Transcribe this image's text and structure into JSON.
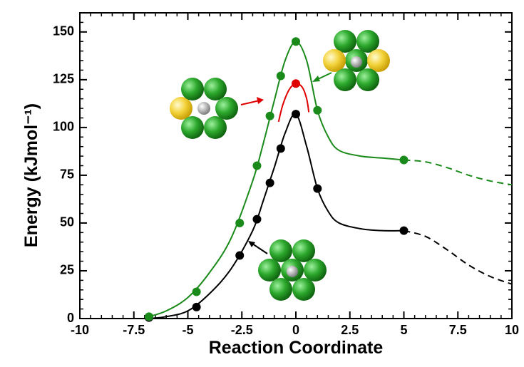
{
  "chart_data": {
    "type": "line",
    "xlabel": "Reaction Coordinate",
    "ylabel": "Energy (kJmol⁻¹)",
    "xlim": [
      -10,
      10
    ],
    "ylim": [
      0,
      160
    ],
    "xticks": [
      -10,
      -7.5,
      -5,
      -2.5,
      0,
      2.5,
      5,
      7.5,
      10
    ],
    "yticks": [
      0,
      25,
      50,
      75,
      100,
      125,
      150
    ],
    "series": [
      {
        "color": "#000000",
        "mode": "line",
        "x": [
          -6.8,
          -6,
          -5,
          -4,
          -3,
          -2,
          -1.5,
          -1,
          -0.5,
          0,
          0.5,
          1,
          1.5,
          2,
          3,
          4,
          5
        ],
        "values": [
          0,
          1,
          4,
          13,
          26,
          46,
          62,
          79,
          97,
          107,
          90,
          68,
          56,
          50,
          47,
          46,
          46
        ]
      },
      {
        "color": "#000000",
        "mode": "dashed",
        "x": [
          5,
          6,
          7,
          8,
          9,
          10
        ],
        "values": [
          46,
          43,
          36,
          28,
          22,
          18
        ]
      },
      {
        "color": "#000000",
        "mode": "markers",
        "x": [
          -6.8,
          -4.6,
          -2.6,
          -1.8,
          -1.2,
          -0.7,
          0,
          1,
          5
        ],
        "values": [
          0.5,
          6,
          33,
          52,
          71,
          89,
          107,
          68,
          46
        ]
      },
      {
        "color": "#1a8a1a",
        "mode": "line",
        "x": [
          -6.8,
          -6,
          -5,
          -4,
          -3,
          -2,
          -1.5,
          -1,
          -0.5,
          0,
          0.5,
          1,
          1.5,
          2,
          3,
          4,
          5
        ],
        "values": [
          1,
          4,
          11,
          24,
          42,
          72,
          92,
          114,
          135,
          145,
          135,
          109,
          95,
          88,
          85,
          84,
          83
        ]
      },
      {
        "color": "#1a8a1a",
        "mode": "dashed",
        "x": [
          5,
          6,
          7,
          8,
          9,
          10
        ],
        "values": [
          83,
          82,
          79,
          75,
          72,
          70
        ]
      },
      {
        "color": "#1a8a1a",
        "mode": "markers",
        "x": [
          -6.8,
          -4.6,
          -2.6,
          -1.8,
          -1.2,
          -0.7,
          0,
          1,
          5
        ],
        "values": [
          1,
          14,
          50,
          80,
          106,
          127,
          145,
          109,
          83
        ]
      },
      {
        "color": "#e00000",
        "mode": "line",
        "x": [
          -0.8,
          -0.6,
          -0.3,
          0,
          0.3,
          0.5,
          0.6
        ],
        "values": [
          103,
          112,
          120,
          123,
          121,
          115,
          108
        ]
      },
      {
        "color": "#e00000",
        "mode": "markers",
        "x": [
          0
        ],
        "values": [
          123
        ]
      }
    ]
  }
}
